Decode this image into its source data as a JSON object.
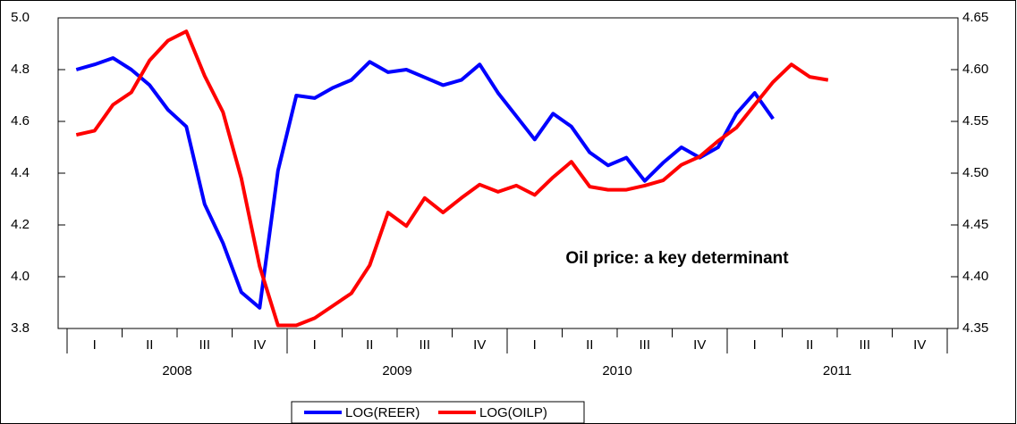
{
  "chart_data": {
    "type": "line",
    "annotation": "Oil price: a key determinant",
    "categories": [
      null,
      "I",
      null,
      null,
      "II",
      null,
      null,
      "III",
      null,
      null,
      "IV",
      null,
      null,
      "I",
      null,
      null,
      "II",
      null,
      null,
      "III",
      null,
      null,
      "IV",
      null,
      null,
      "I",
      null,
      null,
      "II",
      null,
      null,
      "III",
      null,
      null,
      "IV",
      null,
      null,
      "I",
      null,
      null,
      "II",
      null,
      null,
      "III",
      null,
      null,
      "IV",
      null
    ],
    "years": [
      "2008",
      "2009",
      "2010",
      "2011"
    ],
    "ylim": [
      3.8,
      5.0
    ],
    "yticks": [
      3.8,
      {
        "value": 4.0,
        "label": "4.0"
      },
      4.2,
      4.4,
      4.6,
      4.8,
      {
        "value": 5.0,
        "label": "5.0"
      }
    ],
    "y2lim": [
      4.35,
      4.65
    ],
    "y2ticks": [
      4.35,
      {
        "value": 4.4,
        "label": "4.40"
      },
      4.45,
      {
        "value": 4.5,
        "label": "4.50"
      },
      4.55,
      {
        "value": 4.6,
        "label": "4.60"
      },
      4.65
    ],
    "series": [
      {
        "name": "LOG(REER)",
        "color": "#0000ff",
        "values": [
          4.8,
          4.82,
          4.845,
          4.8,
          4.74,
          4.645,
          4.58,
          4.28,
          4.13,
          3.94,
          3.88,
          4.41,
          4.7,
          4.69,
          4.73,
          4.76,
          4.83,
          4.79,
          4.8,
          4.77,
          4.74,
          4.76,
          4.82,
          4.71,
          4.62,
          4.53,
          4.63,
          4.58,
          4.48,
          4.43,
          4.46,
          4.37,
          4.44,
          4.5,
          4.46,
          4.5,
          4.63,
          4.71,
          4.61,
          null,
          null,
          null,
          null,
          null,
          null,
          null,
          null,
          null
        ]
      },
      {
        "name": "LOG(OILP)",
        "color": "#ff0000",
        "axis": "y2",
        "values": [
          4.537,
          4.541,
          4.566,
          4.578,
          4.609,
          4.628,
          4.637,
          4.594,
          4.559,
          4.495,
          4.41,
          4.353,
          4.353,
          4.36,
          4.372,
          4.384,
          4.411,
          4.462,
          4.449,
          4.476,
          4.462,
          4.476,
          4.489,
          4.482,
          4.488,
          4.479,
          4.496,
          4.511,
          4.487,
          4.484,
          4.484,
          4.488,
          4.493,
          4.508,
          4.516,
          4.531,
          4.544,
          4.566,
          4.588,
          4.605,
          4.593,
          4.59,
          null,
          null,
          null,
          null,
          null,
          null
        ]
      }
    ],
    "legend": "bottom"
  }
}
